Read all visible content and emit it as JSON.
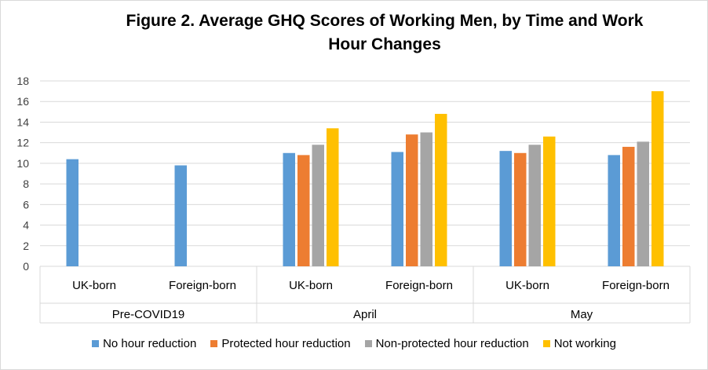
{
  "chart_data": {
    "type": "bar",
    "title": "Figure 2. Average GHQ Scores of Working Men, by Time and Work Hour Changes",
    "title_lines": [
      "Figure 2. Average GHQ Scores of Working Men, by Time and Work",
      "Hour Changes"
    ],
    "ylim": [
      0,
      18
    ],
    "yticks": [
      "0",
      "2",
      "4",
      "6",
      "8",
      "10",
      "12",
      "14",
      "16",
      "18"
    ],
    "grid": true,
    "legend_position": "bottom",
    "groups": [
      {
        "label": "Pre-COVID19",
        "categories": [
          "UK-born",
          "Foreign-born"
        ]
      },
      {
        "label": "April",
        "categories": [
          "UK-born",
          "Foreign-born"
        ]
      },
      {
        "label": "May",
        "categories": [
          "UK-born",
          "Foreign-born"
        ]
      }
    ],
    "series": [
      {
        "name": "No hour reduction",
        "color": "#5b9bd5",
        "values": [
          10.4,
          9.8,
          11.0,
          11.1,
          11.2,
          10.8
        ]
      },
      {
        "name": "Protected hour reduction",
        "color": "#ed7d31",
        "values": [
          null,
          null,
          10.8,
          12.8,
          11.0,
          11.6
        ]
      },
      {
        "name": "Non-protected hour reduction",
        "color": "#a5a5a5",
        "values": [
          null,
          null,
          11.8,
          13.0,
          11.8,
          12.1
        ]
      },
      {
        "name": "Not working",
        "color": "#ffc000",
        "values": [
          null,
          null,
          13.4,
          14.8,
          12.6,
          17.0
        ]
      }
    ]
  }
}
